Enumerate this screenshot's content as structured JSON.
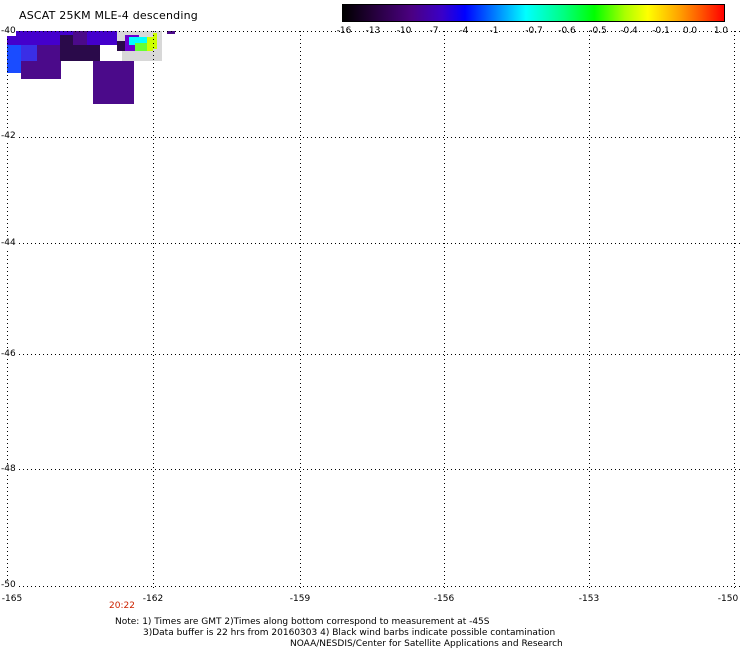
{
  "title": "ASCAT 25KM MLE-4 descending",
  "colorbar": {
    "labels": [
      "-16",
      "-13",
      "-10",
      "-7",
      "-4",
      "-1",
      "-0.7",
      "-0.6",
      "-0.5",
      "-0.4",
      "-0.1",
      "0.0",
      "1.0"
    ]
  },
  "map": {
    "lat_labels": [
      "-40",
      "-42",
      "-44",
      "-46",
      "-48",
      "-50"
    ],
    "lon_labels": [
      "-165",
      "-162",
      "-159",
      "-156",
      "-153",
      "-150"
    ],
    "lat_range": [
      -50,
      -40
    ],
    "lon_range": [
      -165,
      -150
    ],
    "grid": true
  },
  "time_label": "20:22",
  "notes": {
    "line1": "Note: 1) Times are GMT 2)Times along bottom correspond to measurement at -45S",
    "line2": "3)Data buffer is 22 hrs from 20160303 4) Black wind barbs indicate possible contamination",
    "line3": "NOAA/NESDIS/Center for Satellite Applications and Research"
  },
  "colors": {
    "grid": "#000000",
    "time_label": "#cc2200",
    "no_data_gray": "#d8d8d8",
    "dark_purple": "#2a0a4a",
    "purple": "#4b0a8a",
    "violet": "#4400cc",
    "blue": "#1a4cff"
  }
}
